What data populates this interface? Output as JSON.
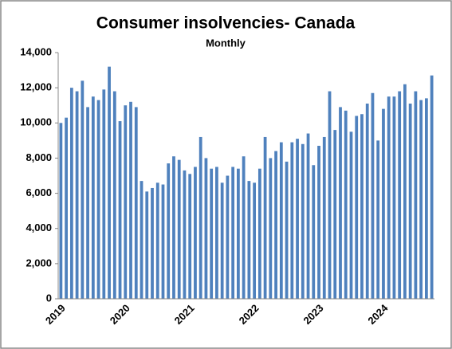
{
  "chart_data": {
    "type": "bar",
    "title": "Consumer insolvencies- Canada",
    "subtitle": "Monthly",
    "categories": [
      "2019",
      null,
      null,
      null,
      null,
      null,
      null,
      null,
      null,
      null,
      null,
      null,
      "2020",
      null,
      null,
      null,
      null,
      null,
      null,
      null,
      null,
      null,
      null,
      null,
      "2021",
      null,
      null,
      null,
      null,
      null,
      null,
      null,
      null,
      null,
      null,
      null,
      "2022",
      null,
      null,
      null,
      null,
      null,
      null,
      null,
      null,
      null,
      null,
      null,
      "2023",
      null,
      null,
      null,
      null,
      null,
      null,
      null,
      null,
      null,
      null,
      null,
      "2024",
      null,
      null,
      null,
      null,
      null,
      null,
      null,
      null,
      null
    ],
    "values": [
      10000,
      10300,
      12000,
      11800,
      12400,
      10900,
      11500,
      11300,
      11900,
      13200,
      11800,
      10100,
      11000,
      11200,
      10900,
      6700,
      6100,
      6300,
      6600,
      6500,
      7700,
      8100,
      7900,
      7300,
      7100,
      7500,
      9200,
      8000,
      7400,
      7500,
      6600,
      7000,
      7500,
      7400,
      8100,
      6700,
      6600,
      7400,
      9200,
      8000,
      8400,
      8900,
      7800,
      8900,
      9100,
      8800,
      9400,
      7600,
      8700,
      9200,
      11800,
      9600,
      10900,
      10700,
      9500,
      10400,
      10500,
      11100,
      11700,
      9000,
      10800,
      11500,
      11500,
      11800,
      12200,
      11100,
      11800,
      11300,
      11400,
      12700
    ],
    "color": "#4f81bd",
    "ylim": [
      0,
      14000
    ],
    "yticks": [
      0,
      {
        "value": 2000,
        "label": "2,000"
      },
      {
        "value": 4000,
        "label": "4,000"
      },
      {
        "value": 6000,
        "label": "6,000"
      },
      {
        "value": 8000,
        "label": "8,000"
      },
      {
        "value": 10000,
        "label": "10,000"
      },
      {
        "value": 12000,
        "label": "12,000"
      },
      {
        "value": 14000,
        "label": "14,000"
      }
    ],
    "grid": false
  }
}
